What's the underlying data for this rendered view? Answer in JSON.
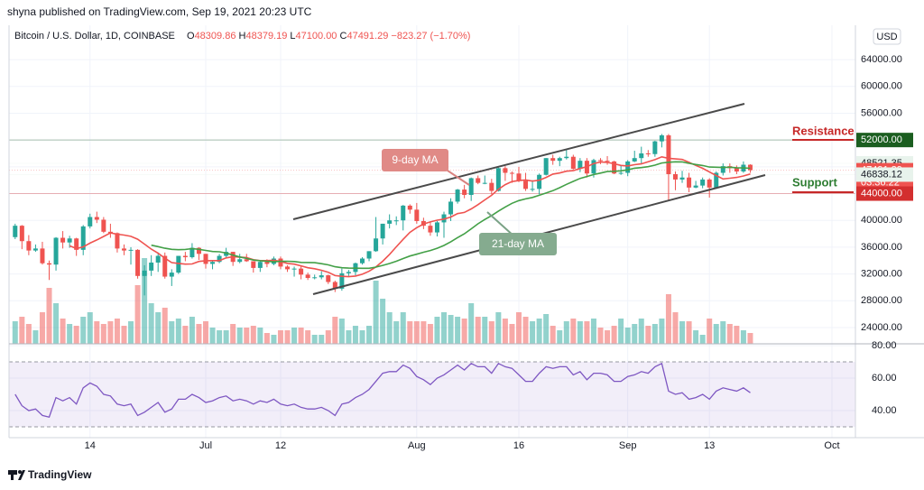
{
  "chart_data": {
    "type": "candlestick",
    "publisher": "shyna published on TradingView.com, Sep 19, 2021 20:23 UTC",
    "symbol": "Bitcoin / U.S. Dollar, 1D, COINBASE",
    "ohlc_header": {
      "o": "48309.86",
      "h": "48379.19",
      "l": "47100.00",
      "c": "47491.29",
      "change": "−823.27 (−1.70%)"
    },
    "currency": "USD",
    "footer": "TradingView",
    "xlim": [
      -0.9,
      123.45
    ],
    "xticks": [
      {
        "value": 11,
        "label": "14"
      },
      {
        "value": 28,
        "label": "Jul"
      },
      {
        "value": 39,
        "label": "12"
      },
      {
        "value": 59,
        "label": "Aug"
      },
      {
        "value": 74,
        "label": "16"
      },
      {
        "value": 90,
        "label": "Sep"
      },
      {
        "value": 102,
        "label": "13"
      },
      {
        "value": 120,
        "label": "Oct"
      }
    ],
    "ylim": [
      21568,
      69135
    ],
    "yticks": [
      {
        "value": 24000,
        "label": "24000.00"
      },
      {
        "value": 28000,
        "label": "28000.00"
      },
      {
        "value": 32000,
        "label": "32000.00"
      },
      {
        "value": 36000,
        "label": "36000.00"
      },
      {
        "value": 40000,
        "label": "40000.00"
      },
      {
        "value": 44000,
        "label": "44000.00"
      },
      {
        "value": 48000,
        "label": "48000.00"
      },
      {
        "value": 52000,
        "label": "52000.00"
      },
      {
        "value": 56000,
        "label": "56000.00"
      },
      {
        "value": 60000,
        "label": "60000.00"
      },
      {
        "value": 64000,
        "label": "64000.00"
      }
    ],
    "grid": true,
    "up_color": "#26a69a",
    "down_color": "#ef5350",
    "open": [
      37500,
      39200,
      36900,
      35500,
      35800,
      33600,
      33400,
      37400,
      36700,
      37300,
      35600,
      39100,
      40500,
      40100,
      38300,
      38100,
      35800,
      35500,
      35600,
      31700,
      32500,
      33700,
      34700,
      31600,
      32200,
      34700,
      34500,
      35900,
      35000,
      33500,
      33800,
      34700,
      35300,
      33800,
      34200,
      33900,
      32900,
      33800,
      33500,
      34300,
      33100,
      32700,
      32800,
      31900,
      31400,
      31500,
      31800,
      30800,
      29800,
      32100,
      32300,
      33600,
      34300,
      35400,
      37300,
      39500,
      40000,
      40000,
      42200,
      41600,
      39900,
      39200,
      38200,
      39700,
      40900,
      42800,
      44600,
      43800,
      46300,
      45600,
      45600,
      44400,
      47800,
      47100,
      47000,
      45900,
      44700,
      44700,
      46800,
      49300,
      48900,
      49300,
      49500,
      47700,
      48900,
      47000,
      49000,
      48900,
      48800,
      47000,
      47100,
      48800,
      49300,
      50000,
      49900,
      51800,
      52700,
      46900,
      46100,
      46400,
      44900,
      45200,
      46100,
      44900,
      47100,
      48100,
      47800,
      47300,
      48309.86
    ],
    "high": [
      39500,
      39300,
      37800,
      36400,
      36800,
      34000,
      37500,
      38400,
      37700,
      37400,
      39300,
      41000,
      41300,
      40500,
      39500,
      38200,
      36400,
      36000,
      35700,
      33300,
      34800,
      35200,
      35200,
      32700,
      34700,
      35300,
      36600,
      36000,
      35000,
      33900,
      35000,
      35900,
      35300,
      35000,
      35000,
      33900,
      34100,
      34200,
      34600,
      34600,
      33300,
      33100,
      33200,
      32200,
      31900,
      32400,
      31900,
      31000,
      32800,
      32600,
      33700,
      34500,
      35400,
      40500,
      39500,
      40900,
      40600,
      42300,
      42400,
      42600,
      40400,
      39800,
      39900,
      41300,
      43300,
      44700,
      45300,
      46400,
      46700,
      46700,
      46200,
      47900,
      48100,
      47300,
      48000,
      47100,
      46000,
      47000,
      49300,
      49800,
      49500,
      50500,
      49800,
      49300,
      49300,
      49200,
      49300,
      49600,
      48900,
      48200,
      49000,
      50400,
      51000,
      50500,
      51900,
      52900,
      52900,
      47300,
      47400,
      47100,
      45900,
      46400,
      46300,
      47300,
      48500,
      48500,
      48200,
      48800,
      48379.19
    ],
    "low": [
      37200,
      35700,
      34800,
      35300,
      33400,
      31100,
      32500,
      35800,
      35900,
      34700,
      34800,
      38800,
      39600,
      38100,
      37400,
      35200,
      34800,
      33400,
      31300,
      28800,
      31700,
      32300,
      31300,
      30200,
      32000,
      33900,
      34300,
      34100,
      32800,
      32700,
      33600,
      34500,
      33200,
      33600,
      33800,
      32200,
      32300,
      33000,
      33300,
      32700,
      32300,
      31600,
      31200,
      31100,
      31200,
      31200,
      30500,
      29300,
      29500,
      31700,
      31800,
      33400,
      33900,
      35300,
      36400,
      38800,
      39300,
      38500,
      41000,
      39500,
      38700,
      37700,
      37600,
      37400,
      39900,
      42500,
      43300,
      42900,
      45400,
      45400,
      43900,
      44300,
      45900,
      45600,
      45700,
      44400,
      44300,
      43900,
      46700,
      48300,
      48100,
      49100,
      47600,
      47200,
      46400,
      46400,
      48400,
      48300,
      46900,
      46800,
      46600,
      48700,
      48400,
      49500,
      49500,
      50900,
      43000,
      44500,
      45600,
      44200,
      44800,
      44800,
      43400,
      44700,
      46700,
      47100,
      46900,
      47100,
      47100
    ],
    "close": [
      39200,
      36900,
      35500,
      35800,
      33600,
      33400,
      37400,
      36700,
      37300,
      35600,
      39100,
      40500,
      40100,
      38300,
      38100,
      35800,
      35500,
      35600,
      31700,
      32500,
      33700,
      34700,
      31600,
      32200,
      34700,
      34500,
      35900,
      35000,
      33500,
      33800,
      34700,
      35300,
      33800,
      34200,
      33900,
      32900,
      33800,
      33500,
      34300,
      33100,
      32700,
      32800,
      31900,
      31400,
      31500,
      31800,
      30800,
      29800,
      32100,
      32300,
      33600,
      34300,
      35400,
      37300,
      39500,
      40000,
      40000,
      42200,
      41600,
      39900,
      39200,
      38200,
      39700,
      40900,
      42800,
      44600,
      43800,
      46300,
      45600,
      45600,
      44400,
      47800,
      47100,
      47000,
      45900,
      44700,
      44700,
      46800,
      49300,
      48900,
      49300,
      49500,
      47700,
      48900,
      47000,
      49000,
      48900,
      48800,
      47000,
      47100,
      48800,
      49300,
      50000,
      49900,
      51800,
      52700,
      46900,
      46100,
      46400,
      44900,
      45200,
      46100,
      44900,
      47100,
      48100,
      47800,
      47300,
      48314.56,
      47491.29
    ],
    "volume": [
      25,
      30,
      22,
      15,
      35,
      62,
      45,
      28,
      22,
      20,
      30,
      35,
      25,
      22,
      25,
      28,
      20,
      25,
      65,
      95,
      45,
      35,
      40,
      25,
      28,
      20,
      30,
      22,
      25,
      18,
      15,
      15,
      22,
      18,
      18,
      20,
      18,
      12,
      10,
      15,
      15,
      18,
      18,
      15,
      10,
      10,
      15,
      30,
      28,
      15,
      20,
      15,
      20,
      70,
      50,
      35,
      25,
      35,
      25,
      25,
      25,
      22,
      30,
      35,
      32,
      30,
      28,
      45,
      30,
      30,
      25,
      35,
      28,
      22,
      35,
      30,
      25,
      28,
      33,
      20,
      15,
      25,
      28,
      25,
      25,
      28,
      18,
      15,
      20,
      28,
      18,
      22,
      28,
      20,
      22,
      28,
      55,
      35,
      25,
      25,
      15,
      10,
      28,
      22,
      25,
      22,
      20,
      15,
      12
    ],
    "vlim": [
      0,
      100
    ],
    "ma_fast": {
      "label": "9-day MA",
      "color": "#ef5350"
    },
    "ma_slow": {
      "label": "21-day MA",
      "color": "#43a047"
    },
    "price_tags": [
      {
        "value": 52000,
        "label": "52000.00",
        "color": "#1b5e20",
        "text_color": "#ffffff"
      },
      {
        "value": 48521.35,
        "label": "48521.35",
        "color": "#e8f3ec",
        "text_color": "#131722"
      },
      {
        "value": 47491.29,
        "label": "47491.29",
        "color": "#ef5350",
        "text_color": "#ffffff"
      },
      {
        "value": 46838.12,
        "label": "46838.12",
        "color": "#e8f3ec",
        "text_color": "#131722"
      },
      {
        "value": 44000,
        "label": "44000.00",
        "color": "#d32f2f",
        "text_color": "#ffffff"
      }
    ],
    "countdown": "03:36:22",
    "resistance": "Resistance",
    "support": "Support",
    "rsi": {
      "color": "#7e57c2",
      "ylim": [
        23.33,
        80.56
      ],
      "yticks": [
        {
          "value": 40,
          "label": "40.00"
        },
        {
          "value": 60,
          "label": "60.00"
        },
        {
          "value": 80,
          "label": "80.00"
        }
      ],
      "band": [
        30,
        70
      ],
      "values": [
        50,
        43,
        40,
        41,
        37,
        36,
        48,
        46,
        48,
        44,
        54,
        57,
        55,
        50,
        49,
        44,
        43,
        44,
        37,
        39,
        42,
        45,
        39,
        41,
        47,
        47,
        50,
        48,
        45,
        46,
        48,
        49,
        46,
        47,
        46,
        44,
        46,
        45,
        47,
        44,
        43,
        44,
        42,
        41,
        41,
        42,
        40,
        37,
        44,
        45,
        48,
        50,
        53,
        58,
        63,
        64,
        64,
        68,
        66,
        61,
        59,
        56,
        60,
        62,
        65,
        68,
        65,
        69,
        67,
        67,
        63,
        69,
        67,
        66,
        62,
        58,
        58,
        63,
        67,
        66,
        67,
        67,
        62,
        64,
        59,
        63,
        63,
        62,
        58,
        58,
        61,
        62,
        64,
        63,
        67,
        69,
        52,
        50,
        51,
        47,
        48,
        50,
        47,
        52,
        54,
        53,
        52,
        54,
        51
      ]
    }
  }
}
